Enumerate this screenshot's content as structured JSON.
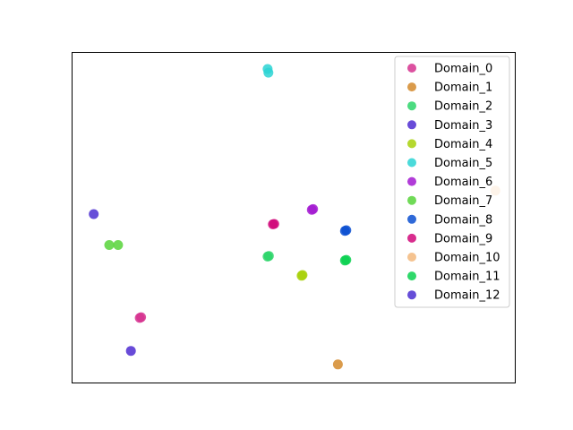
{
  "chart_data": {
    "type": "scatter",
    "title": "",
    "xlabel": "",
    "ylabel": "",
    "xlim": [
      0,
      100
    ],
    "ylim": [
      0,
      100
    ],
    "axes_ticks": false,
    "grid": false,
    "legend_position": "top-right",
    "series": [
      {
        "name": "Domain_0",
        "color": "#d6338f",
        "points": [
          [
            15.5,
            19.8
          ],
          [
            15.2,
            19.6
          ]
        ]
      },
      {
        "name": "Domain_1",
        "color": "#d48a2c",
        "points": [
          [
            60,
            5.5
          ]
        ]
      },
      {
        "name": "Domain_2",
        "color": "#2dd56a",
        "points": [
          [
            44.4,
            38.4
          ],
          [
            44.1,
            38.2
          ]
        ]
      },
      {
        "name": "Domain_3",
        "color": "#4d2bd1",
        "points": [
          [
            13.2,
            9.6
          ]
        ]
      },
      {
        "name": "Domain_4",
        "color": "#a8d10b",
        "points": [
          [
            52,
            32.6
          ],
          [
            51.8,
            32.4
          ]
        ]
      },
      {
        "name": "Domain_5",
        "color": "#2cd3d3",
        "points": [
          [
            44.1,
            95.1
          ],
          [
            44.3,
            94.0
          ]
        ]
      },
      {
        "name": "Domain_6",
        "color": "#a31ad1",
        "points": [
          [
            54.4,
            52.6
          ],
          [
            54.1,
            52.4
          ]
        ]
      },
      {
        "name": "Domain_7",
        "color": "#57d33a",
        "points": [
          [
            8.3,
            41.7
          ],
          [
            10.3,
            41.7
          ]
        ]
      },
      {
        "name": "Domain_8",
        "color": "#0a4fd1",
        "points": [
          [
            61.9,
            46.2
          ],
          [
            61.6,
            46.0
          ]
        ]
      },
      {
        "name": "Domain_9",
        "color": "#d1087a",
        "points": [
          [
            45.6,
            48.1
          ],
          [
            45.3,
            48.0
          ]
        ]
      },
      {
        "name": "Domain_10",
        "color": "#f3b97d",
        "points": [
          [
            95.6,
            58.2
          ]
        ]
      },
      {
        "name": "Domain_11",
        "color": "#0ad150",
        "points": [
          [
            61.9,
            37.2
          ],
          [
            61.6,
            37.0
          ]
        ]
      },
      {
        "name": "Domain_12",
        "color": "#4b2fd1",
        "points": [
          [
            4.8,
            51.1
          ]
        ]
      }
    ]
  }
}
